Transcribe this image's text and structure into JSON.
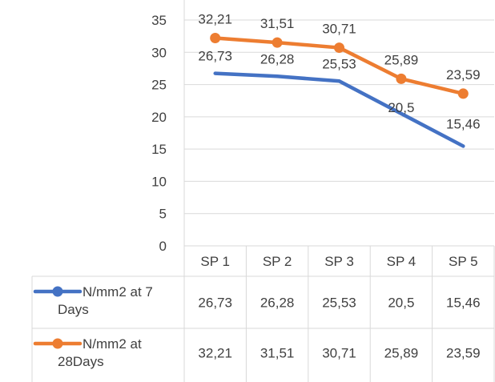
{
  "chart_data": {
    "type": "line",
    "categories": [
      "SP 1",
      "SP 2",
      "SP 3",
      "SP 4",
      "SP 5"
    ],
    "ylim": [
      0,
      35
    ],
    "yticks": [
      0,
      5,
      10,
      15,
      20,
      25,
      30,
      35
    ],
    "yticks_text": [
      "0",
      "5",
      "10",
      "15",
      "20",
      "25",
      "30",
      "35"
    ],
    "grid": true,
    "legend": "data-table",
    "series": [
      {
        "name": "N/mm2 at 7 Days",
        "legend_lines": [
          "N/mm2 at 7",
          "Days"
        ],
        "color": "#4472C4",
        "values": [
          26.73,
          26.28,
          25.53,
          20.5,
          15.46
        ],
        "labels": [
          "26,73",
          "26,28",
          "25,53",
          "20,5",
          "15,46"
        ],
        "markers": false
      },
      {
        "name": "N/mm2 at 28Days",
        "legend_lines": [
          "N/mm2 at",
          "28Days"
        ],
        "color": "#ED7D31",
        "values": [
          32.21,
          31.51,
          30.71,
          25.89,
          23.59
        ],
        "labels": [
          "32,21",
          "31,51",
          "30,71",
          "25,89",
          "23,59"
        ],
        "markers": true
      }
    ]
  }
}
